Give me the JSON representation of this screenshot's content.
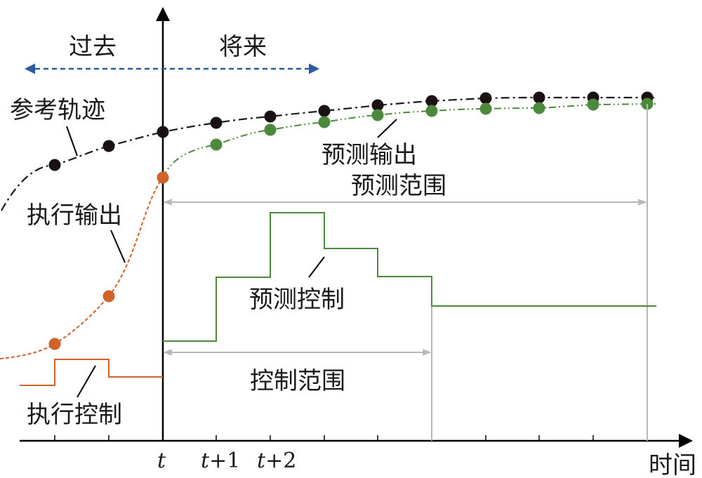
{
  "labels": {
    "past": "过去",
    "future": "将来",
    "reference_trajectory": "参考轨迹",
    "predicted_output": "预测输出",
    "prediction_horizon": "预测范围",
    "executed_output": "执行输出",
    "predicted_control": "预测控制",
    "control_horizon": "控制范围",
    "executed_control": "执行控制",
    "time_axis": "时间"
  },
  "ticks": {
    "t": "t",
    "t1_var": "t",
    "t1_off": "+1",
    "t2_var": "t",
    "t2_off": "+2"
  },
  "colors": {
    "axis": "#000000",
    "reference": "#1a1a1a",
    "predicted": "#4a8a3a",
    "executed": "#d0622a",
    "past_future_arrow": "#2a5aa0",
    "horizon_arrow": "#b8b8b8",
    "leader": "#000000"
  }
}
